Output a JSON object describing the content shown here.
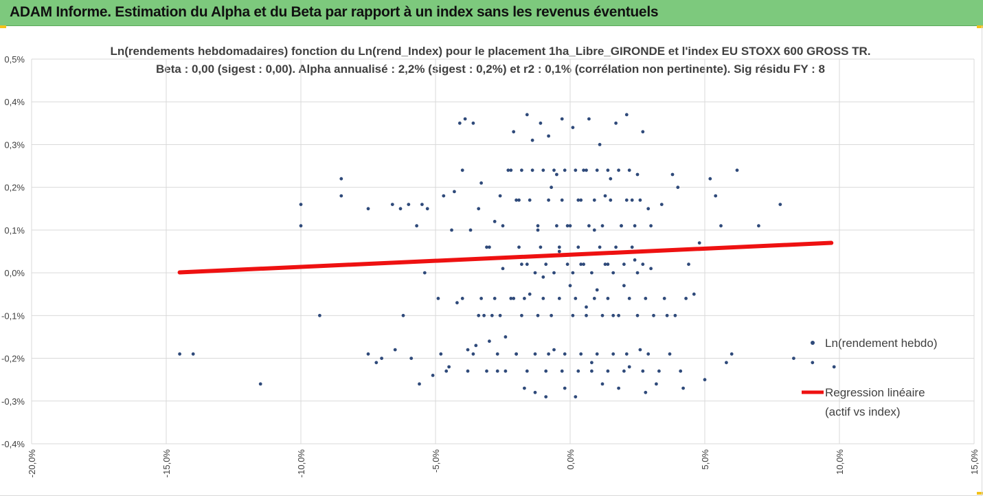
{
  "header": {
    "title": "ADAM Informe. Estimation du Alpha et du Beta par rapport à un index sans les revenus éventuels",
    "background": "#7dc97d",
    "corner_color": "#f3c21a"
  },
  "chart_data": {
    "type": "scatter",
    "title_line1": "Ln(rendements hebdomadaires) fonction du Ln(rend_Index) pour le placement 1ha_Libre_GIRONDE et l'index EU STOXX 600 GROSS TR.",
    "title_line2": "Beta : 0,00 (sigest : 0,00). Alpha annualisé : 2,2% (sigest : 0,2%) et r2 : 0,1% (corrélation non pertinente). Sig résidu FY : 8",
    "xlim": [
      -0.2,
      0.15
    ],
    "ylim": [
      -0.004,
      0.005
    ],
    "x_ticks": [
      "-20,0%",
      "-15,0%",
      "-10,0%",
      "-5,0%",
      "0,0%",
      "5,0%",
      "10,0%",
      "15,0%"
    ],
    "y_ticks": [
      "-0,4%",
      "-0,3%",
      "-0,2%",
      "-0,1%",
      "0,0%",
      "0,1%",
      "0,2%",
      "0,3%",
      "0,4%",
      "0,5%"
    ],
    "grid": true,
    "legend_position": "right",
    "series": [
      {
        "name": "Ln(rendement hebdo)",
        "color": "#2f4a7a",
        "marker": "circle",
        "x": [
          -0.145,
          -0.14,
          -0.115,
          -0.1,
          -0.1,
          -0.093,
          -0.085,
          -0.085,
          -0.075,
          -0.075,
          -0.072,
          -0.07,
          -0.066,
          -0.065,
          -0.063,
          -0.062,
          -0.06,
          -0.059,
          -0.057,
          -0.056,
          -0.055,
          -0.054,
          -0.053,
          -0.051,
          -0.049,
          -0.048,
          -0.047,
          -0.046,
          -0.045,
          -0.044,
          -0.043,
          -0.042,
          -0.041,
          -0.04,
          -0.039,
          -0.038,
          -0.037,
          -0.036,
          -0.035,
          -0.034,
          -0.033,
          -0.032,
          -0.031,
          -0.03,
          -0.029,
          -0.028,
          -0.027,
          -0.026,
          -0.025,
          -0.024,
          -0.023,
          -0.022,
          -0.021,
          -0.02,
          -0.019,
          -0.018,
          -0.017,
          -0.016,
          -0.015,
          -0.014,
          -0.013,
          -0.012,
          -0.011,
          -0.01,
          -0.009,
          -0.008,
          -0.007,
          -0.006,
          -0.005,
          -0.004,
          -0.003,
          -0.002,
          -0.001,
          0.0,
          0.001,
          0.002,
          0.003,
          0.004,
          0.005,
          0.006,
          0.007,
          0.008,
          0.009,
          0.01,
          0.011,
          0.012,
          0.013,
          0.014,
          0.015,
          0.016,
          0.017,
          0.018,
          0.019,
          0.02,
          0.021,
          0.022,
          0.023,
          0.024,
          0.025,
          0.026,
          0.027,
          0.028,
          0.029,
          0.03,
          0.032,
          0.034,
          0.036,
          0.038,
          0.04,
          0.042,
          0.044,
          0.046,
          0.048,
          0.05,
          0.052,
          0.054,
          0.056,
          0.058,
          0.06,
          0.062,
          0.07,
          0.078,
          0.083,
          0.09,
          0.098,
          -0.022,
          -0.018,
          -0.014,
          -0.01,
          -0.006,
          -0.002,
          0.002,
          0.006,
          0.01,
          0.014,
          0.018,
          0.022,
          -0.02,
          -0.015,
          -0.008,
          -0.003,
          0.004,
          0.009,
          0.015,
          0.021,
          0.026,
          -0.025,
          -0.012,
          -0.005,
          0.0,
          0.007,
          0.012,
          0.019,
          0.024,
          0.03,
          -0.03,
          -0.019,
          -0.011,
          -0.004,
          0.003,
          0.011,
          0.017,
          0.023,
          -0.016,
          -0.009,
          -0.001,
          0.005,
          0.013,
          0.02,
          0.027,
          -0.013,
          -0.006,
          0.001,
          0.008,
          0.016,
          0.025,
          -0.04,
          -0.033,
          -0.028,
          -0.021,
          -0.017,
          -0.01,
          -0.004,
          0.002,
          0.009,
          0.014,
          0.022,
          0.028,
          0.035,
          0.043,
          -0.034,
          -0.026,
          -0.018,
          -0.012,
          -0.007,
          0.001,
          0.006,
          0.012,
          0.018,
          0.025,
          0.031,
          0.039,
          -0.036,
          -0.027,
          -0.02,
          -0.013,
          -0.008,
          -0.002,
          0.004,
          0.01,
          0.016,
          0.021,
          0.029,
          0.037,
          -0.038,
          -0.031,
          -0.024,
          -0.016,
          -0.009,
          -0.003,
          0.003,
          0.008,
          0.014,
          0.02,
          0.027,
          0.033,
          0.041
        ],
        "y": [
          -0.0019,
          -0.0019,
          -0.0026,
          0.0016,
          0.0011,
          -0.001,
          0.0022,
          0.0018,
          -0.0019,
          0.0015,
          -0.0021,
          -0.002,
          0.0016,
          -0.0018,
          0.0015,
          -0.001,
          0.0016,
          -0.002,
          0.0011,
          -0.0026,
          0.0016,
          0.0,
          0.0015,
          -0.0024,
          -0.0006,
          -0.0019,
          0.0018,
          -0.0023,
          -0.0022,
          0.001,
          0.0019,
          -0.0007,
          0.0035,
          0.0024,
          0.0036,
          -0.0018,
          0.001,
          0.0035,
          -0.0017,
          0.0015,
          0.0021,
          -0.001,
          0.0006,
          -0.0016,
          -0.001,
          0.0012,
          -0.0023,
          0.0018,
          0.0001,
          -0.0015,
          0.0024,
          -0.0006,
          0.0033,
          -0.0019,
          0.0017,
          0.0002,
          -0.0027,
          0.0037,
          -0.0005,
          0.0031,
          -0.0028,
          0.001,
          0.0035,
          -0.0001,
          -0.0029,
          0.0032,
          0.002,
          -0.0018,
          0.0023,
          0.0005,
          0.0036,
          -0.0027,
          0.0011,
          -0.0003,
          0.0034,
          -0.0029,
          0.0017,
          0.0002,
          0.0024,
          -0.0008,
          0.0036,
          -0.0021,
          0.001,
          -0.0004,
          0.003,
          -0.0026,
          0.0018,
          0.0002,
          0.0022,
          -0.001,
          0.0035,
          -0.0027,
          0.0011,
          -0.0003,
          0.0037,
          -0.0022,
          0.0017,
          0.0003,
          0.0023,
          -0.0018,
          0.0033,
          -0.0028,
          0.0015,
          0.0001,
          -0.0026,
          0.0016,
          -0.001,
          0.0023,
          0.002,
          -0.0027,
          0.0002,
          -0.0005,
          0.0007,
          -0.0025,
          0.0022,
          0.0018,
          0.0011,
          -0.0021,
          -0.0019,
          0.0024,
          0.0011,
          0.0016,
          -0.002,
          -0.0021,
          -0.0022,
          0.0024,
          0.0024,
          0.0024,
          0.0024,
          0.0024,
          0.0024,
          0.0024,
          0.0024,
          0.0024,
          0.0024,
          0.0024,
          0.0024,
          0.0017,
          0.0017,
          0.0017,
          0.0017,
          0.0017,
          0.0017,
          0.0017,
          0.0017,
          0.0017,
          0.0011,
          0.0011,
          0.0011,
          0.0011,
          0.0011,
          0.0011,
          0.0011,
          0.0011,
          0.0011,
          0.0006,
          0.0006,
          0.0006,
          0.0006,
          0.0006,
          0.0006,
          0.0006,
          0.0006,
          0.0002,
          0.0002,
          0.0002,
          0.0002,
          0.0002,
          0.0002,
          0.0002,
          0.0,
          0.0,
          0.0,
          0.0,
          0.0,
          0.0,
          -0.0006,
          -0.0006,
          -0.0006,
          -0.0006,
          -0.0006,
          -0.0006,
          -0.0006,
          -0.0006,
          -0.0006,
          -0.0006,
          -0.0006,
          -0.0006,
          -0.0006,
          -0.0006,
          -0.001,
          -0.001,
          -0.001,
          -0.001,
          -0.001,
          -0.001,
          -0.001,
          -0.001,
          -0.001,
          -0.001,
          -0.001,
          -0.001,
          -0.0019,
          -0.0019,
          -0.0019,
          -0.0019,
          -0.0019,
          -0.0019,
          -0.0019,
          -0.0019,
          -0.0019,
          -0.0019,
          -0.0019,
          -0.0019,
          -0.0023,
          -0.0023,
          -0.0023,
          -0.0023,
          -0.0023,
          -0.0023,
          -0.0023,
          -0.0023,
          -0.0023,
          -0.0023,
          -0.0023,
          -0.0023,
          -0.0023
        ]
      },
      {
        "name": "Regression linéaire (actif vs index)",
        "type": "line",
        "color": "#ee1111",
        "x": [
          -0.145,
          0.097
        ],
        "y": [
          1e-05,
          0.0007
        ]
      }
    ],
    "legend": [
      {
        "label": "Ln(rendement hebdo)"
      },
      {
        "label_line1": "Regression linéaire",
        "label_line2": "(actif vs index)"
      }
    ]
  }
}
